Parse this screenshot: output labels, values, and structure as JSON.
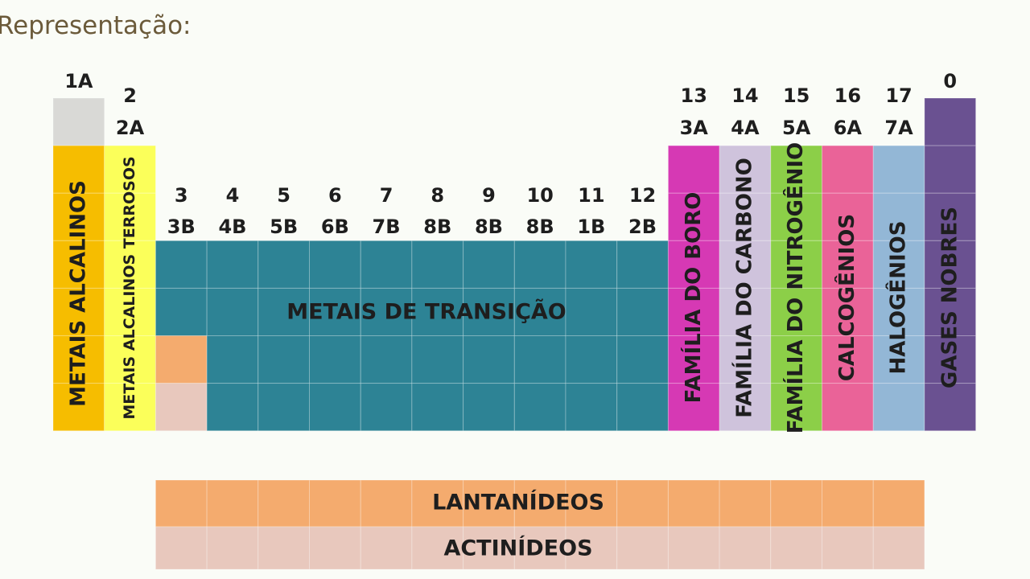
{
  "title": "Representação:",
  "columns": [
    {
      "top": "1A"
    },
    {
      "top": "2",
      "bottom": "2A"
    },
    {
      "top": "3",
      "bottom": "3B"
    },
    {
      "top": "4",
      "bottom": "4B"
    },
    {
      "top": "5",
      "bottom": "5B"
    },
    {
      "top": "6",
      "bottom": "6B"
    },
    {
      "top": "7",
      "bottom": "7B"
    },
    {
      "top": "8",
      "bottom": "8B"
    },
    {
      "top": "9",
      "bottom": "8B"
    },
    {
      "top": "10",
      "bottom": "8B"
    },
    {
      "top": "11",
      "bottom": "1B"
    },
    {
      "top": "12",
      "bottom": "2B"
    },
    {
      "top": "13",
      "bottom": "3A"
    },
    {
      "top": "14",
      "bottom": "4A"
    },
    {
      "top": "15",
      "bottom": "5A"
    },
    {
      "top": "16",
      "bottom": "6A"
    },
    {
      "top": "17",
      "bottom": "7A"
    },
    {
      "top": "0"
    }
  ],
  "families": [
    "METAIS ALCALINOS",
    "METAIS ALCALINOS TERROSOS",
    "FAMÍLIA DO BORO",
    "FAMÍLIA DO CARBONO",
    "FAMÍLIA DO NITROGÊNIO",
    "CALCOGÊNIOS",
    "HALOGÊNIOS",
    "GASES NOBRES"
  ],
  "transition": "METAIS DE TRANSIÇÃO",
  "lanthanides": "LANTANÍDEOS",
  "actinides": "ACTINÍDEOS"
}
